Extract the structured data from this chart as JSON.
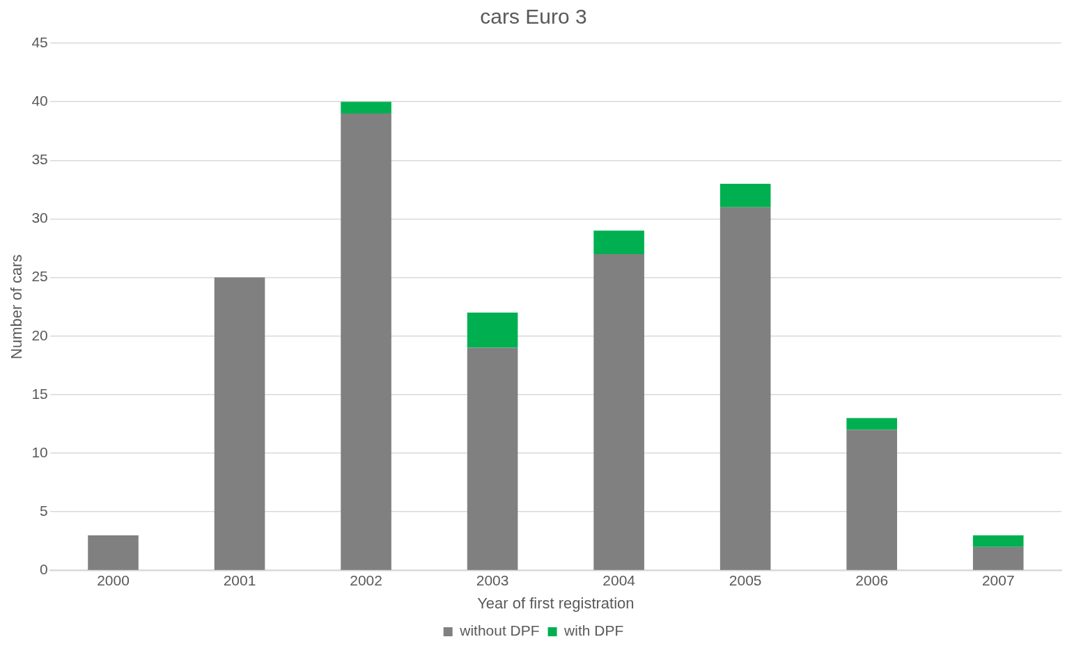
{
  "chart_data": {
    "type": "bar",
    "title": "cars Euro 3",
    "xlabel": "Year of first registration",
    "ylabel": "Number of cars",
    "categories": [
      "2000",
      "2001",
      "2002",
      "2003",
      "2004",
      "2005",
      "2006",
      "2007"
    ],
    "series": [
      {
        "name": "without DPF",
        "color": "#808080",
        "values": [
          3,
          25,
          39,
          19,
          27,
          31,
          12,
          2
        ]
      },
      {
        "name": "with DPF",
        "color": "#00b050",
        "values": [
          0,
          0,
          1,
          3,
          2,
          2,
          1,
          1
        ]
      }
    ],
    "stacked": true,
    "ylim": [
      0,
      45
    ],
    "yticks": [
      0,
      5,
      10,
      15,
      20,
      25,
      30,
      35,
      40,
      45
    ],
    "grid": "y",
    "legend": "bottom"
  }
}
